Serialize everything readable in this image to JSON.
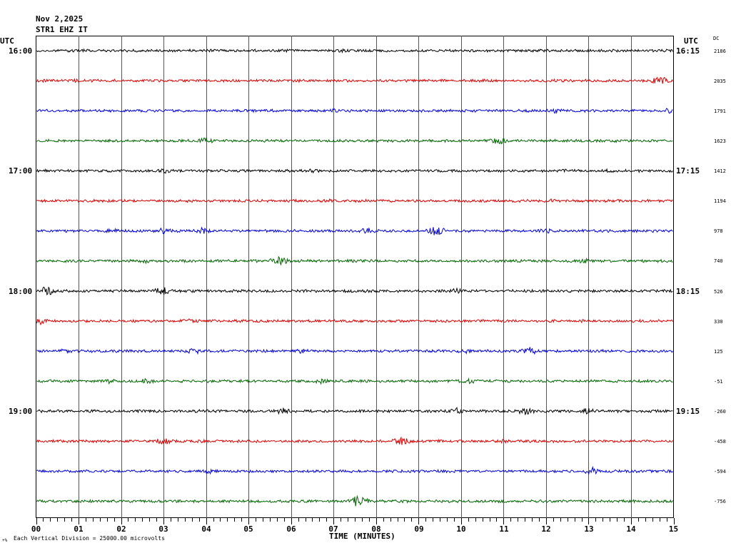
{
  "header": {
    "date": "Nov 2,2025",
    "station": "STR1 EHZ IT",
    "utc_left": "UTC",
    "utc_right": "UTC",
    "dc_label": "DC"
  },
  "left_times": [
    "16:00",
    "17:00",
    "18:00",
    "19:00"
  ],
  "right_times": [
    "16:15",
    "17:15",
    "18:15",
    "19:15"
  ],
  "x_ticks": [
    "00",
    "01",
    "02",
    "03",
    "04",
    "05",
    "06",
    "07",
    "08",
    "09",
    "10",
    "11",
    "12",
    "13",
    "14",
    "15"
  ],
  "x_label": "TIME (MINUTES)",
  "footer": "Each Vertical Division = 25000.00 microvolts",
  "footer_mark": "+%",
  "dc_values": [
    "2186",
    "2035",
    "1791",
    "1623",
    "1412",
    "1194",
    "978",
    "740",
    "526",
    "330",
    "125",
    "-51",
    "-260",
    "-458",
    "-594",
    "-756"
  ],
  "trace_colors": [
    "#000000",
    "#dd0000",
    "#0000dd",
    "#006600"
  ]
}
